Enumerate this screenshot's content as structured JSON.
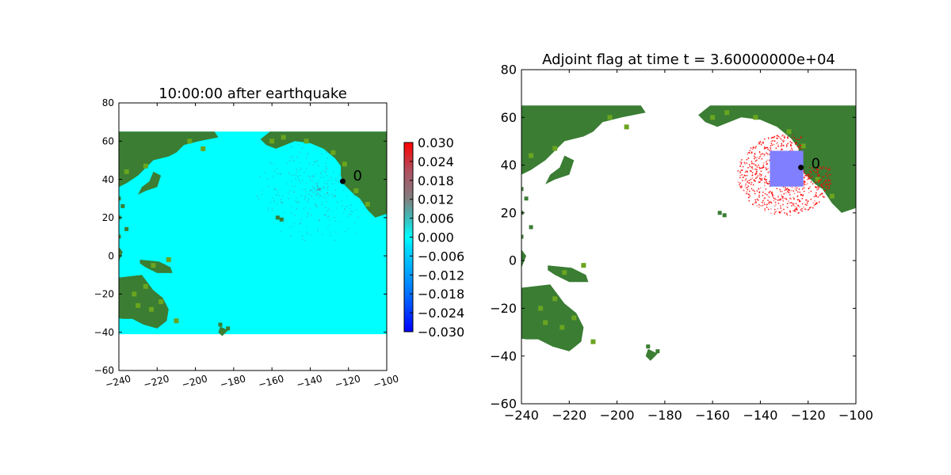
{
  "figure": {
    "background": "#ffffff"
  },
  "colors": {
    "ocean": "#00ffff",
    "land_dark": "#3a7d33",
    "land_light": "#6aa51f",
    "marker": "#000000",
    "adjoint_flag": "#ff0000",
    "refinement_box": "#7f7fff"
  },
  "chart_data": [
    {
      "type": "heatmap",
      "title": "10:00:00 after earthquake",
      "xlabel": "",
      "ylabel": "",
      "xlim": [
        -240,
        -100
      ],
      "ylim": [
        -60,
        80
      ],
      "xticks": [
        "−240",
        "−220",
        "−200",
        "−180",
        "−160",
        "−140",
        "−120",
        "−100"
      ],
      "yticks": [
        "80",
        "60",
        "40",
        "20",
        "0",
        "−20",
        "−40",
        "−60"
      ],
      "domain": {
        "x": [
          -240,
          -100
        ],
        "y": [
          -41,
          65
        ]
      },
      "grid": false,
      "marker": {
        "x": -123,
        "y": 39,
        "label": "0"
      },
      "colorbar": {
        "range": [
          -0.03,
          0.03
        ],
        "ticks": [
          "0.030",
          "0.024",
          "0.018",
          "0.012",
          "0.006",
          "0.000",
          "−0.006",
          "−0.012",
          "−0.018",
          "−0.024",
          "−0.030"
        ]
      }
    },
    {
      "type": "heatmap",
      "title": "Adjoint flag at time t = 3.60000000e+04",
      "xlabel": "",
      "ylabel": "",
      "xlim": [
        -240,
        -100
      ],
      "ylim": [
        -60,
        80
      ],
      "xticks": [
        "−240",
        "−220",
        "−200",
        "−180",
        "−160",
        "−140",
        "−120",
        "−100"
      ],
      "yticks": [
        "80",
        "60",
        "40",
        "20",
        "0",
        "−20",
        "−40",
        "−60"
      ],
      "grid": false,
      "marker": {
        "x": -123,
        "y": 39,
        "label": "0"
      },
      "box": {
        "x0": -136,
        "x1": -122,
        "y0": 31,
        "y1": 46
      }
    }
  ]
}
